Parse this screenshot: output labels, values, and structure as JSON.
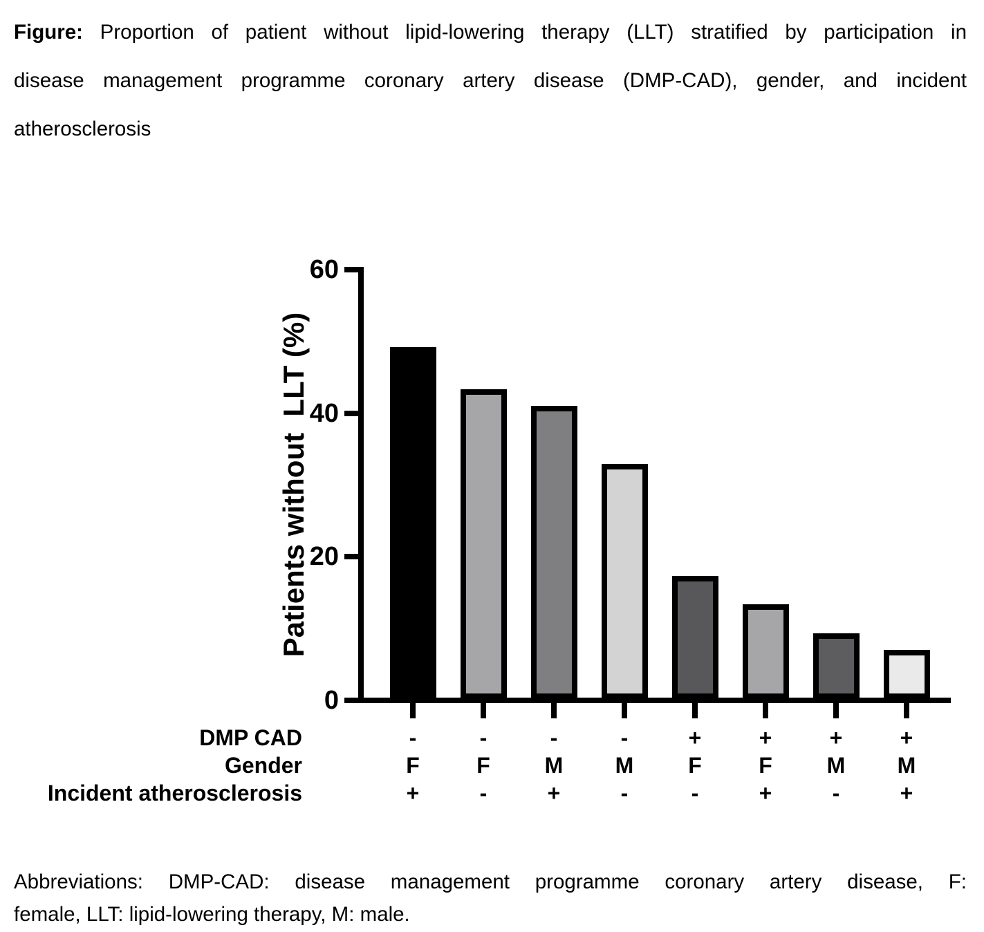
{
  "figure_caption": {
    "label": "Figure:",
    "line1_rest": " Proportion of patient without lipid-lowering therapy (LLT) stratified by participation in",
    "line2": "disease management programme coronary artery disease (DMP-CAD), gender, and incident",
    "line3": "atherosclerosis"
  },
  "chart_data": {
    "type": "bar",
    "title": "",
    "ylabel": "Patients without  LLT (%)",
    "xlabel": "",
    "ylim": [
      0,
      60
    ],
    "yticks": [
      0,
      20,
      40,
      60
    ],
    "grid": false,
    "legend": null,
    "values": [
      49.2,
      43.3,
      41.0,
      32.9,
      17.3,
      13.4,
      9.3,
      7.0
    ],
    "bar_colors": [
      "#000000",
      "#a6a6a9",
      "#7f7f82",
      "#d3d3d3",
      "#58585a",
      "#a6a6a9",
      "#5d5d5f",
      "#eaeaea"
    ],
    "bar_border_color": "#000000",
    "annotation_rows": [
      {
        "label": "DMP CAD",
        "values": [
          "-",
          "-",
          "-",
          "-",
          "+",
          "+",
          "+",
          "+"
        ]
      },
      {
        "label": "Gender",
        "values": [
          "F",
          "F",
          "M",
          "M",
          "F",
          "F",
          "M",
          "M"
        ]
      },
      {
        "label": "Incident atherosclerosis",
        "values": [
          "+",
          "-",
          "+",
          "-",
          "-",
          "+",
          "-",
          "+"
        ]
      }
    ]
  },
  "abbreviations": {
    "line1": "Abbreviations: DMP-CAD: disease management programme coronary artery disease, F:",
    "line2": "female, LLT: lipid-lowering therapy, M: male."
  }
}
